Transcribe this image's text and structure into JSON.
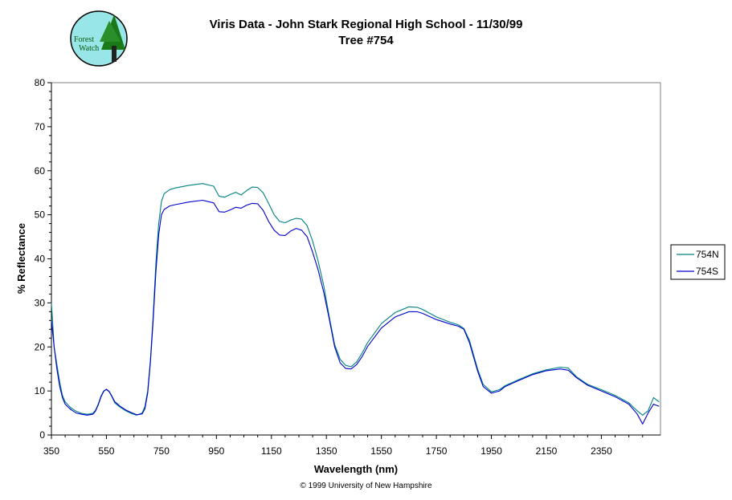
{
  "header": {
    "logo_text_line1": "Forest",
    "logo_text_line2": "Watch"
  },
  "footer": {
    "copyright": "© 1999 University of New Hampshire"
  },
  "colors": {
    "series_754N": "#008080",
    "series_754S": "#0000cc",
    "frame": "#808080"
  },
  "chart_data": {
    "type": "line",
    "title": "Viris Data - John Stark Regional High School - 11/30/99",
    "subtitle": "Tree #754",
    "xlabel": "Wavelength (nm)",
    "ylabel": "% Reflectance",
    "xlim": [
      350,
      2565
    ],
    "ylim": [
      0,
      80
    ],
    "x_ticks": [
      "350",
      "550",
      "750",
      "950",
      "1150",
      "1350",
      "1550",
      "1750",
      "1950",
      "2150",
      "2350"
    ],
    "y_ticks": [
      "0",
      "10",
      "20",
      "30",
      "40",
      "50",
      "60",
      "70",
      "80"
    ],
    "grid": false,
    "legend_position": "right",
    "series": [
      {
        "name": "754N",
        "x": [
          350,
          360,
          370,
          380,
          390,
          400,
          420,
          440,
          460,
          480,
          500,
          510,
          520,
          530,
          540,
          550,
          560,
          570,
          580,
          600,
          620,
          640,
          660,
          680,
          690,
          700,
          710,
          720,
          730,
          740,
          750,
          760,
          780,
          800,
          850,
          900,
          940,
          960,
          980,
          1000,
          1020,
          1040,
          1060,
          1080,
          1100,
          1120,
          1140,
          1160,
          1180,
          1200,
          1220,
          1240,
          1260,
          1280,
          1300,
          1320,
          1340,
          1360,
          1380,
          1400,
          1420,
          1440,
          1460,
          1480,
          1500,
          1550,
          1600,
          1650,
          1680,
          1700,
          1750,
          1800,
          1830,
          1850,
          1870,
          1900,
          1920,
          1950,
          1980,
          2000,
          2050,
          2100,
          2150,
          2200,
          2230,
          2260,
          2300,
          2350,
          2400,
          2450,
          2480,
          2500,
          2520,
          2540,
          2560
        ],
        "values": [
          30,
          20,
          16,
          12,
          9,
          7.5,
          6.2,
          5.4,
          4.9,
          4.7,
          4.9,
          5.6,
          7,
          8.8,
          10,
          10.3,
          9.8,
          8.7,
          7.3,
          6.3,
          5.5,
          4.9,
          4.5,
          5,
          6.5,
          10,
          17,
          27,
          39,
          48,
          53,
          54.8,
          55.7,
          56.1,
          56.7,
          57.1,
          56.5,
          54.2,
          54,
          54.6,
          55.1,
          54.5,
          55.5,
          56.3,
          56.2,
          55,
          52.6,
          50,
          48.5,
          48.2,
          48.8,
          49.2,
          49,
          47.5,
          44,
          39.5,
          34,
          27,
          20.5,
          17.2,
          15.8,
          15.5,
          16.6,
          18.6,
          21,
          25.3,
          27.8,
          29.1,
          29,
          28.5,
          26.8,
          25.6,
          25,
          24.2,
          21.5,
          15,
          11.5,
          9.8,
          10.3,
          11.2,
          12.6,
          13.9,
          14.8,
          15.4,
          15.2,
          13.2,
          11.5,
          10.3,
          9,
          7.3,
          5.5,
          4.5,
          5.5,
          8.5,
          7.5
        ]
      },
      {
        "name": "754S",
        "x": [
          350,
          360,
          370,
          380,
          390,
          400,
          420,
          440,
          460,
          480,
          500,
          510,
          520,
          530,
          540,
          550,
          560,
          570,
          580,
          600,
          620,
          640,
          660,
          680,
          690,
          700,
          710,
          720,
          730,
          740,
          750,
          760,
          780,
          800,
          850,
          900,
          940,
          960,
          980,
          1000,
          1020,
          1040,
          1060,
          1080,
          1100,
          1120,
          1140,
          1160,
          1180,
          1200,
          1220,
          1240,
          1260,
          1280,
          1300,
          1320,
          1340,
          1360,
          1380,
          1400,
          1420,
          1440,
          1460,
          1480,
          1500,
          1550,
          1600,
          1650,
          1680,
          1700,
          1750,
          1800,
          1830,
          1850,
          1870,
          1900,
          1920,
          1950,
          1980,
          2000,
          2050,
          2100,
          2150,
          2200,
          2230,
          2260,
          2300,
          2350,
          2400,
          2450,
          2480,
          2500,
          2520,
          2540,
          2560
        ],
        "values": [
          26,
          20,
          15,
          11,
          8.5,
          7,
          5.8,
          5,
          4.7,
          4.5,
          4.7,
          5.4,
          6.8,
          8.6,
          9.9,
          10.4,
          9.9,
          8.8,
          7.6,
          6.5,
          5.7,
          5.1,
          4.6,
          4.8,
          6,
          9.5,
          16.5,
          26,
          37,
          45.5,
          50,
          51.2,
          52,
          52.3,
          52.9,
          53.3,
          52.7,
          50.7,
          50.6,
          51.1,
          51.7,
          51.5,
          52.2,
          52.6,
          52.5,
          51,
          48.5,
          46.5,
          45.4,
          45.3,
          46.3,
          46.9,
          46.5,
          45,
          41.5,
          37.5,
          32.5,
          26.5,
          20,
          16.4,
          15.1,
          15,
          16,
          17.8,
          20.1,
          24.3,
          26.8,
          28,
          28,
          27.6,
          26.2,
          25.2,
          24.7,
          24,
          21,
          14.5,
          11,
          9.5,
          10,
          11,
          12.4,
          13.7,
          14.6,
          15,
          14.7,
          13,
          11.3,
          10,
          8.7,
          7,
          4.8,
          2.5,
          5,
          7,
          6.5
        ]
      }
    ]
  }
}
